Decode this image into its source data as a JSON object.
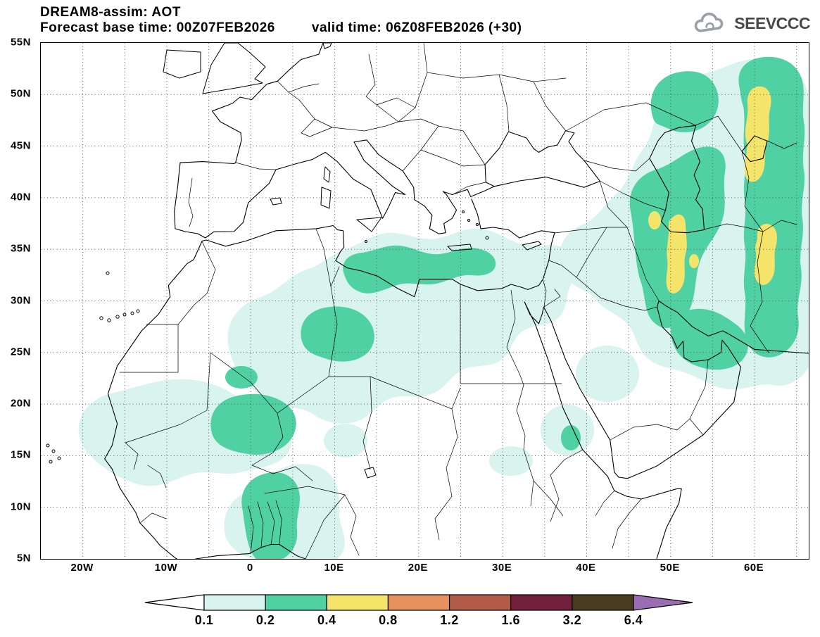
{
  "header": {
    "title": "DREAM8-assim: AOT",
    "base_time_label": "Forecast base time: 00Z07FEB2026",
    "valid_time_label": "valid time: 06Z08FEB2026 (+30)"
  },
  "logo": {
    "text": "SEEVCCC"
  },
  "map": {
    "lat_ticks": [
      "55N",
      "50N",
      "45N",
      "40N",
      "35N",
      "30N",
      "25N",
      "20N",
      "15N",
      "10N",
      "5N"
    ],
    "lon_ticks": [
      "20W",
      "10W",
      "0",
      "10E",
      "20E",
      "30E",
      "40E",
      "50E",
      "60E"
    ]
  },
  "colorbar": {
    "labels": [
      "0.1",
      "0.2",
      "0.4",
      "0.8",
      "1.2",
      "1.6",
      "3.2",
      "6.4"
    ],
    "colors": [
      "#ffffff",
      "#d9f3ee",
      "#4fd1a3",
      "#f4e56a",
      "#e8915f",
      "#b25c48",
      "#73203d",
      "#4a3c1f",
      "#9a6cb4"
    ]
  },
  "chart_data": {
    "type": "heatmap",
    "title": "DREAM8-assim: AOT",
    "x_ticks": [
      "20W",
      "10W",
      "0",
      "10E",
      "20E",
      "30E",
      "40E",
      "50E",
      "60E"
    ],
    "y_ticks": [
      "55N",
      "50N",
      "45N",
      "40N",
      "35N",
      "30N",
      "25N",
      "20N",
      "15N",
      "10N",
      "5N"
    ],
    "contour_levels": [
      0.1,
      0.2,
      0.4,
      0.8,
      1.2,
      1.6,
      3.2,
      6.4
    ],
    "palette": [
      "#ffffff",
      "#d9f3ee",
      "#4fd1a3",
      "#f4e56a",
      "#e8915f",
      "#b25c48",
      "#73203d",
      "#4a3c1f",
      "#9a6cb4"
    ],
    "visible_maxima": [
      {
        "region": "western Iran / south Caspian flank",
        "aot_range": "0.4-0.8"
      },
      {
        "region": "central Asia (top right of map)",
        "aot_range": "0.4-0.8"
      },
      {
        "region": "eastern Iran",
        "aot_range": "0.4-0.8"
      },
      {
        "region": "Libya-Egypt coastal band",
        "aot_range": "0.2-0.4"
      },
      {
        "region": "Mali / central Sahara",
        "aot_range": "0.2-0.4"
      },
      {
        "region": "Nigeria-Benin down to Gulf of Guinea coast",
        "aot_range": "0.2-0.4"
      },
      {
        "region": "broad Middle East and Sahara background",
        "aot_range": "0.1-0.2"
      }
    ]
  }
}
